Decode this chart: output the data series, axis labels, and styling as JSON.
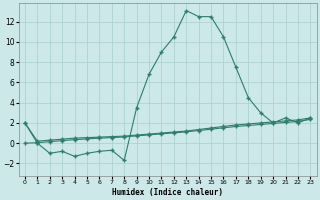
{
  "xlabel": "Humidex (Indice chaleur)",
  "bg_color": "#cce8e8",
  "line_color": "#2e7d6e",
  "grid_color": "#aacece",
  "xlim": [
    -0.5,
    23.5
  ],
  "ylim": [
    -3.2,
    13.8
  ],
  "yticks": [
    -2,
    0,
    2,
    4,
    6,
    8,
    10,
    12
  ],
  "xticks": [
    0,
    1,
    2,
    3,
    4,
    5,
    6,
    7,
    8,
    9,
    10,
    11,
    12,
    13,
    14,
    15,
    16,
    17,
    18,
    19,
    20,
    21,
    22,
    23
  ],
  "line1_x": [
    0,
    1,
    2,
    3,
    4,
    5,
    6,
    7,
    8,
    9,
    10,
    11,
    12,
    13,
    14,
    15,
    16,
    17,
    18,
    19,
    20,
    21,
    22,
    23
  ],
  "line1_y": [
    2.0,
    0.0,
    -1.0,
    -0.8,
    -1.3,
    -1.0,
    -0.8,
    -0.7,
    -1.7,
    3.5,
    6.8,
    9.0,
    10.5,
    13.1,
    12.5,
    12.5,
    10.5,
    7.5,
    4.5,
    3.0,
    2.0,
    2.5,
    2.0,
    2.5
  ],
  "line2_x": [
    0,
    1,
    2,
    3,
    4,
    5,
    6,
    7,
    8,
    9,
    10,
    11,
    12,
    13,
    14,
    15,
    16,
    17,
    18,
    19,
    20,
    21,
    22,
    23
  ],
  "line2_y": [
    2.0,
    0.2,
    0.3,
    0.4,
    0.5,
    0.55,
    0.6,
    0.65,
    0.7,
    0.8,
    0.9,
    1.0,
    1.1,
    1.2,
    1.35,
    1.5,
    1.65,
    1.8,
    1.9,
    2.0,
    2.1,
    2.2,
    2.3,
    2.5
  ],
  "line3_x": [
    0,
    1,
    2,
    3,
    4,
    5,
    6,
    7,
    8,
    9,
    10,
    11,
    12,
    13,
    14,
    15,
    16,
    17,
    18,
    19,
    20,
    21,
    22,
    23
  ],
  "line3_y": [
    0.0,
    0.05,
    0.15,
    0.25,
    0.35,
    0.42,
    0.5,
    0.55,
    0.62,
    0.72,
    0.82,
    0.92,
    1.02,
    1.12,
    1.25,
    1.38,
    1.52,
    1.65,
    1.75,
    1.85,
    1.95,
    2.05,
    2.15,
    2.35
  ]
}
